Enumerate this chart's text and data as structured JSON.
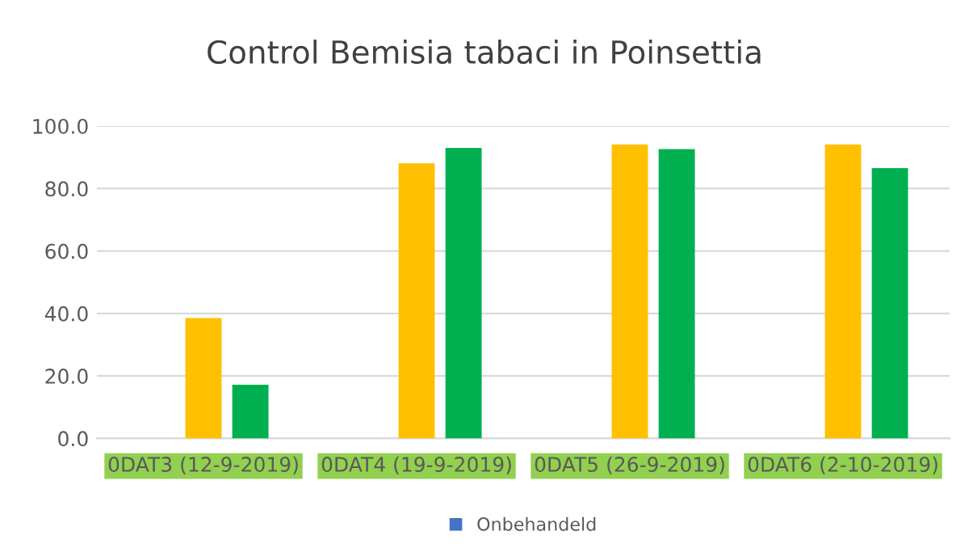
{
  "chart_data": {
    "type": "bar",
    "title": "Control Bemisia tabaci in Poinsettia",
    "categories": [
      "0DAT3 (12-9-2019)",
      "0DAT4 (19-9-2019)",
      "0DAT5 (26-9-2019)",
      "0DAT6 (2-10-2019)"
    ],
    "series": [
      {
        "name": "Onbehandeld",
        "color": "#4472c4",
        "values": [
          0,
          0,
          0,
          0
        ]
      },
      {
        "color": "#ffc000",
        "values": [
          38.5,
          88.1,
          94.1,
          94.1
        ]
      },
      {
        "color": "#00b050",
        "values": [
          17.2,
          93.0,
          92.6,
          86.5
        ]
      }
    ],
    "ylim": [
      0,
      100
    ],
    "yticks": [
      {
        "value": 0,
        "label": "0.0"
      },
      {
        "value": 20,
        "label": "20.0"
      },
      {
        "value": 40,
        "label": "40.0"
      },
      {
        "value": 60,
        "label": "60.0"
      },
      {
        "value": 80,
        "label": "80.0"
      },
      {
        "value": 100,
        "label": "100.0"
      }
    ],
    "grid": "y",
    "legend": "bottom"
  }
}
